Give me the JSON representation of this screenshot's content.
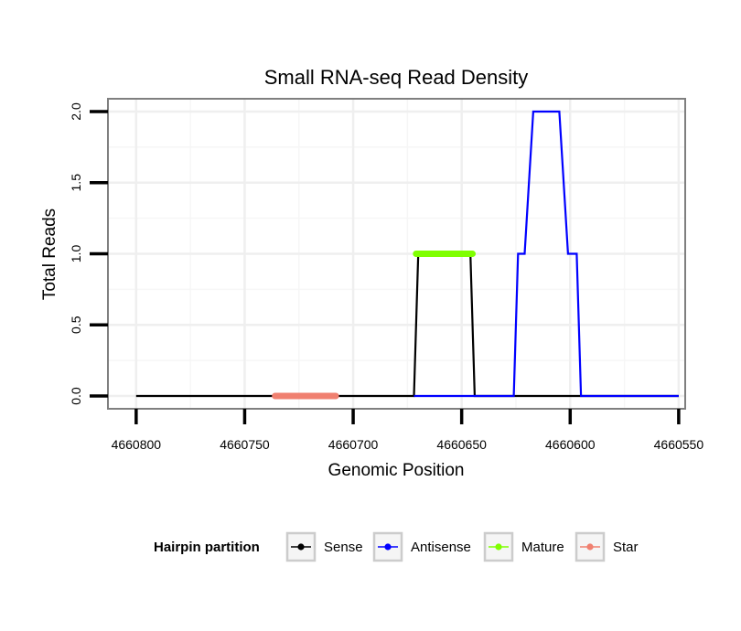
{
  "chart_data": {
    "type": "line",
    "title": "Small RNA-seq Read Density",
    "xlabel": "Genomic Position",
    "ylabel": "Total Reads",
    "x_reversed": true,
    "xlim": [
      4660813,
      4660547
    ],
    "ylim": [
      -0.09,
      2.09
    ],
    "xticks": [
      4660800,
      4660750,
      4660700,
      4660650,
      4660600,
      4660550
    ],
    "xtick_labels": [
      "4660800",
      "4660750",
      "4660700",
      "4660650",
      "4660600",
      "4660550"
    ],
    "yticks": [
      0.0,
      0.5,
      1.0,
      1.5,
      2.0
    ],
    "ytick_labels": [
      "0.0",
      "0.5",
      "1.0",
      "1.5",
      "2.0"
    ],
    "grid": true,
    "legend": {
      "title": "Hairpin partition",
      "position": "bottom",
      "entries": [
        {
          "name": "Sense",
          "color": "#000000"
        },
        {
          "name": "Antisense",
          "color": "#0000ff"
        },
        {
          "name": "Mature",
          "color": "#7fff00"
        },
        {
          "name": "Star",
          "color": "#f08070"
        }
      ]
    },
    "series": [
      {
        "name": "Sense",
        "color": "#000000",
        "x": [
          4660800,
          4660672,
          4660670,
          4660646,
          4660644,
          4660550
        ],
        "y": [
          0,
          0,
          1,
          1,
          0,
          0
        ]
      },
      {
        "name": "Antisense",
        "color": "#0000ff",
        "x": [
          4660672,
          4660644,
          4660626,
          4660624,
          4660621,
          4660617,
          4660605,
          4660601,
          4660597,
          4660595,
          4660550
        ],
        "y": [
          0,
          0,
          0,
          1,
          1,
          2,
          2,
          1,
          1,
          0,
          0
        ]
      },
      {
        "name": "Mature",
        "color": "#7fff00",
        "x": [
          4660671,
          4660645
        ],
        "y": [
          1,
          1
        ]
      },
      {
        "name": "Star",
        "color": "#f08070",
        "x": [
          4660736,
          4660708
        ],
        "y": [
          0,
          0
        ]
      }
    ]
  }
}
